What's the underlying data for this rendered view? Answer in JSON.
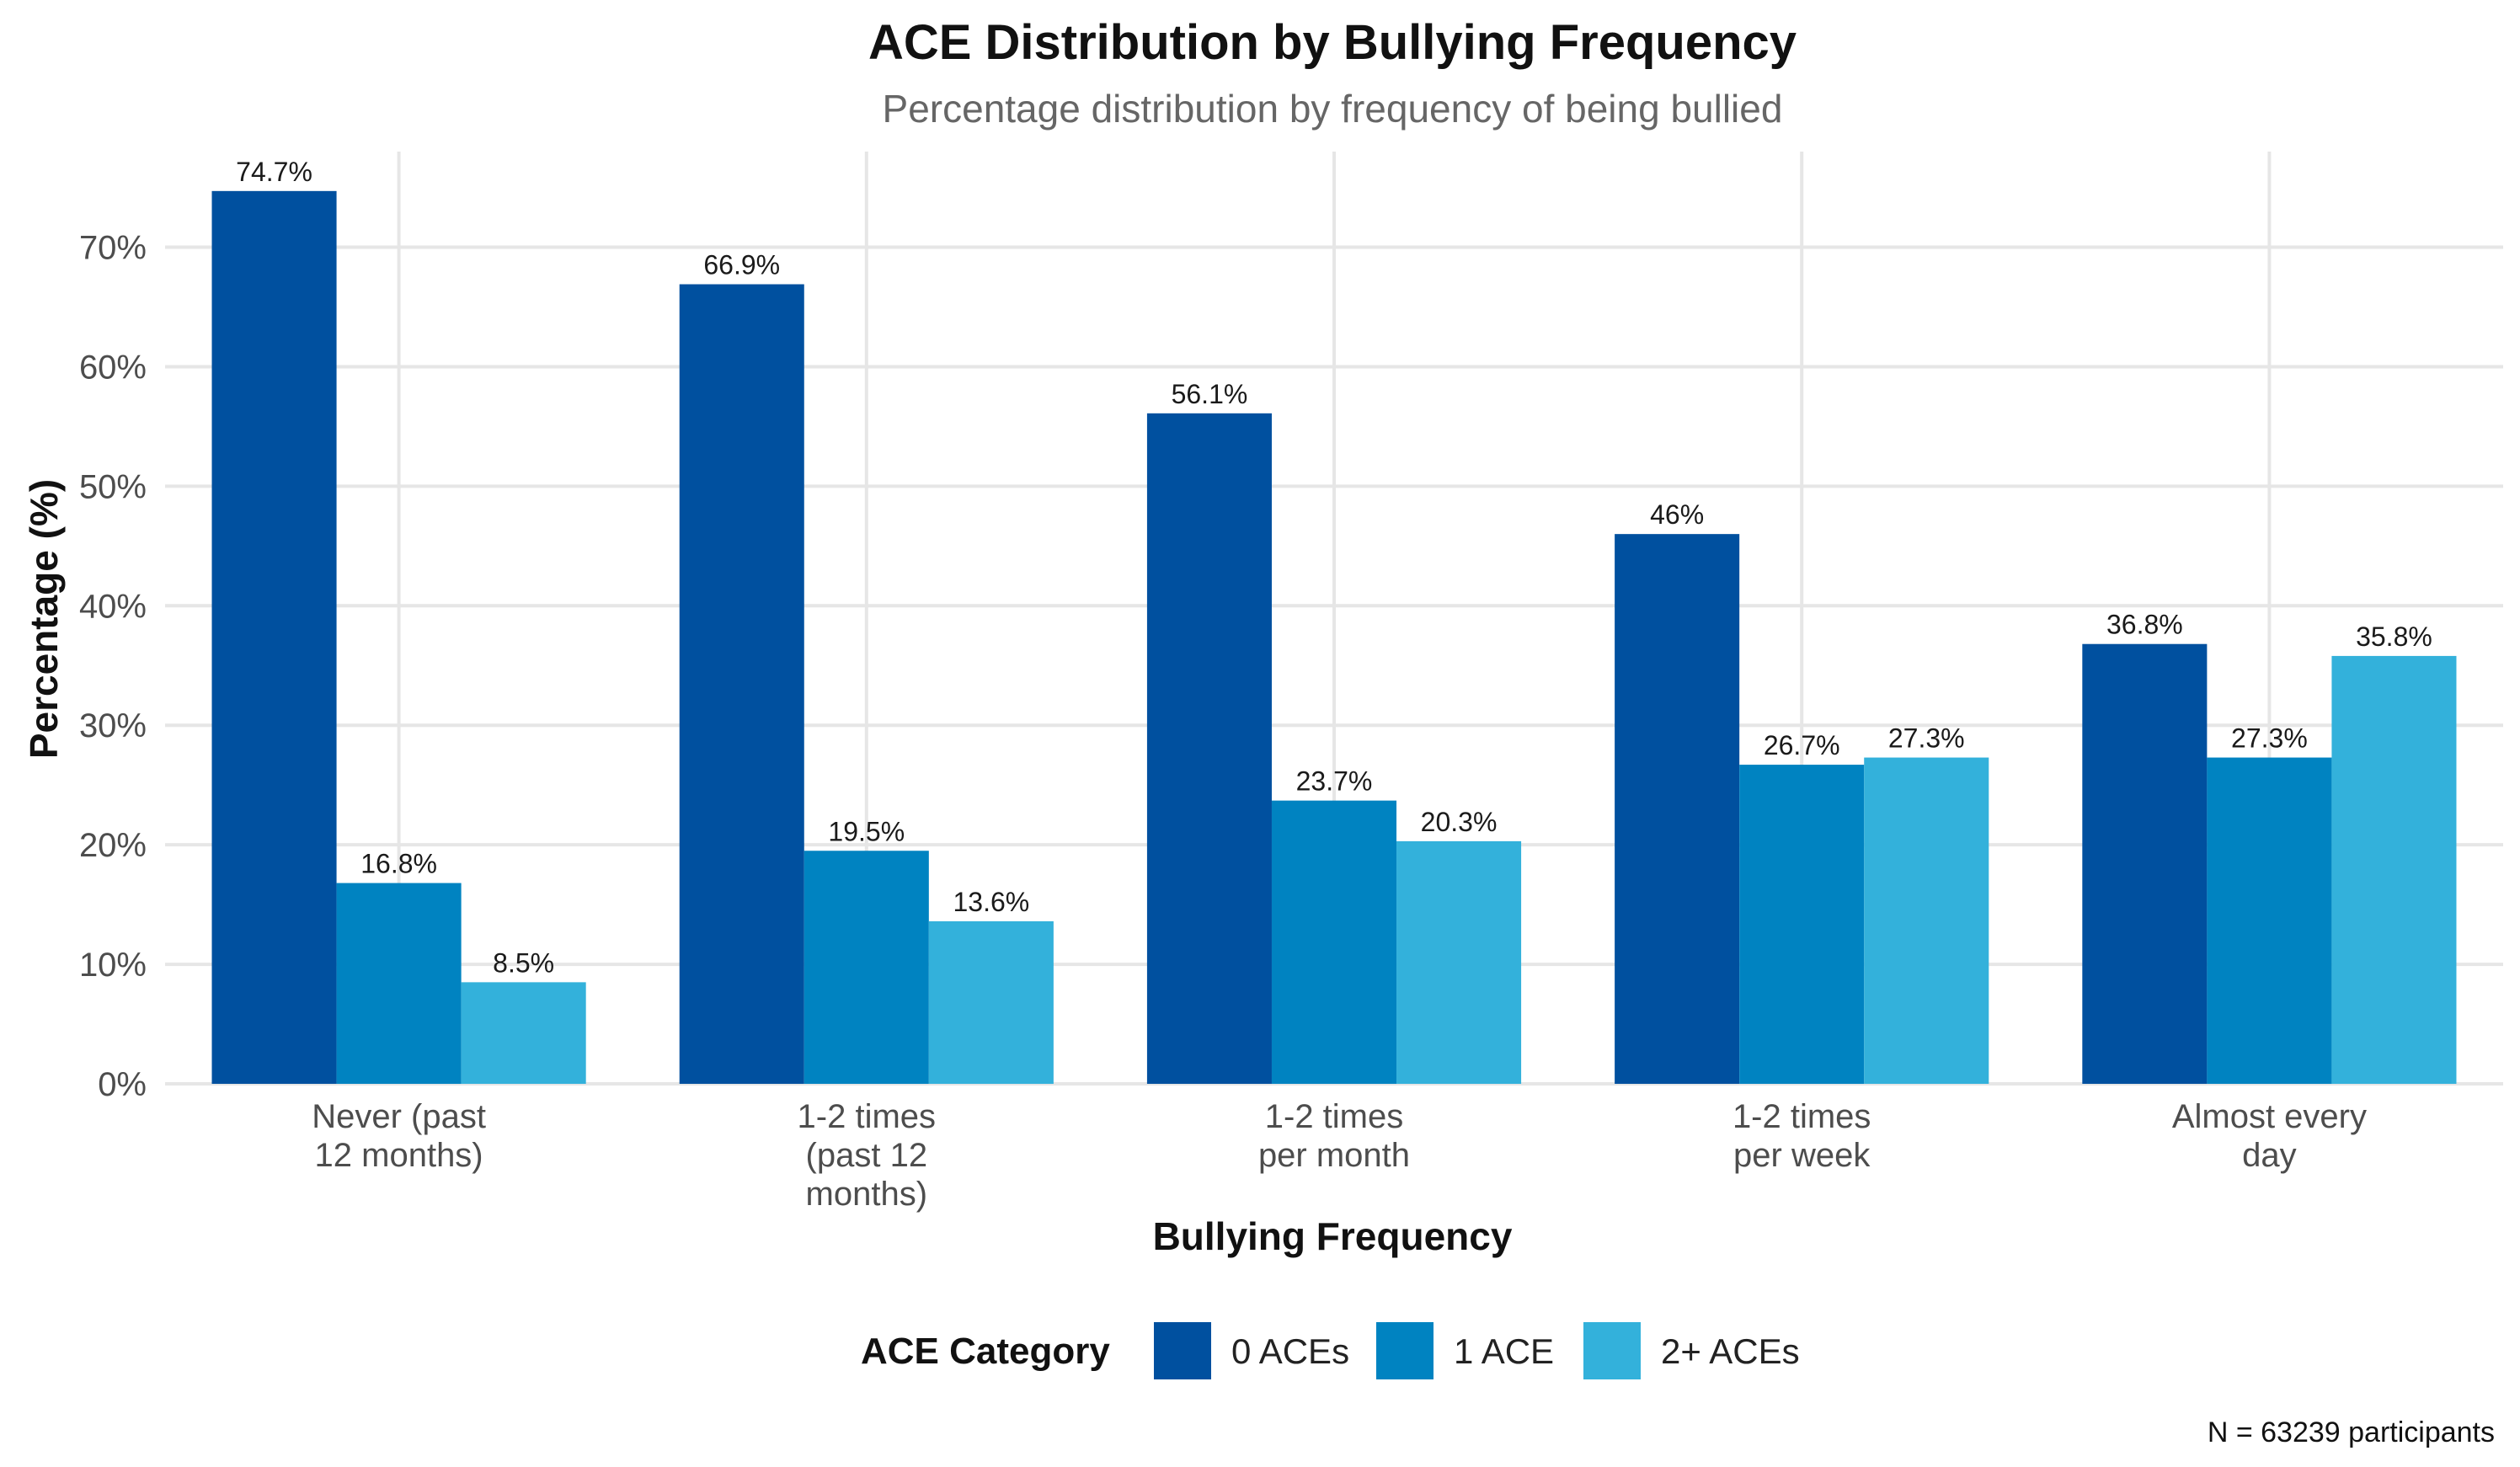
{
  "chart_data": {
    "type": "bar",
    "title": "ACE Distribution by Bullying Frequency",
    "subtitle": "Percentage distribution by frequency of being bullied",
    "xlabel": "Bullying Frequency",
    "ylabel": "Percentage (%)",
    "ylim": [
      0,
      78
    ],
    "yticks": [
      0,
      10,
      20,
      30,
      40,
      50,
      60,
      70
    ],
    "ytick_labels": [
      "0%",
      "10%",
      "20%",
      "30%",
      "40%",
      "50%",
      "60%",
      "70%"
    ],
    "grid": true,
    "categories": [
      [
        "Never (past",
        "12 months)"
      ],
      [
        "1-2 times",
        "(past 12",
        "months)"
      ],
      [
        "1-2 times",
        "per month"
      ],
      [
        "1-2 times",
        "per week"
      ],
      [
        "Almost every",
        "day"
      ]
    ],
    "series": [
      {
        "name": "0 ACEs",
        "color": "#00509f",
        "values": [
          74.7,
          66.9,
          56.1,
          46,
          36.8
        ],
        "labels": [
          "74.7%",
          "66.9%",
          "56.1%",
          "46%",
          "36.8%"
        ]
      },
      {
        "name": "1 ACE",
        "color": "#0083c1",
        "values": [
          16.8,
          19.5,
          23.7,
          26.7,
          27.3
        ],
        "labels": [
          "16.8%",
          "19.5%",
          "23.7%",
          "26.7%",
          "27.3%"
        ]
      },
      {
        "name": "2+ ACEs",
        "color": "#33b1db",
        "values": [
          8.5,
          13.6,
          20.3,
          27.3,
          35.8
        ],
        "labels": [
          "8.5%",
          "13.6%",
          "20.3%",
          "27.3%",
          "35.8%"
        ]
      }
    ],
    "legend": {
      "title": "ACE Category",
      "position": "bottom"
    },
    "caption": "N = 63239 participants"
  }
}
